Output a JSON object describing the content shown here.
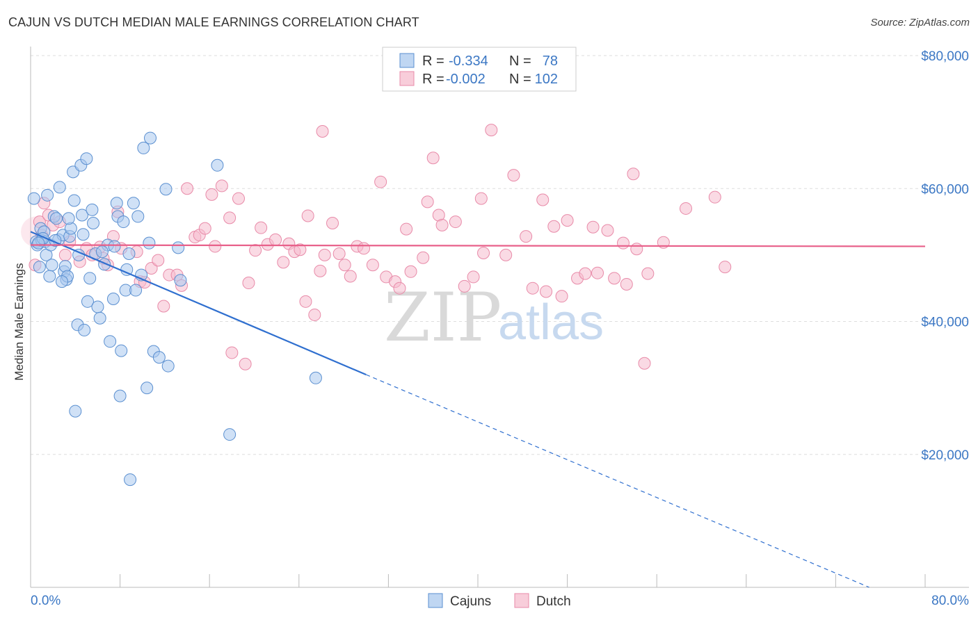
{
  "header": {
    "title": "CAJUN VS DUTCH MEDIAN MALE EARNINGS CORRELATION CHART",
    "source": "Source: ZipAtlas.com"
  },
  "watermark": {
    "zip": "ZIP",
    "atlas": "atlas"
  },
  "legend": {
    "rows": [
      {
        "r_label": "R =",
        "r_value": "-0.334",
        "n_label": "N =",
        "n_value": "78",
        "color": "#6a9fdc"
      },
      {
        "r_label": "R =",
        "r_value": "-0.002",
        "n_label": "N =",
        "n_value": "102",
        "color": "#f08cab"
      }
    ]
  },
  "bottom_legend": {
    "items": [
      "Cajuns",
      "Dutch"
    ]
  },
  "colors": {
    "cajun_fill": "#a9c8ee",
    "cajun_stroke": "#5a8fd0",
    "cajun_line": "#2f6fcf",
    "dutch_fill": "#f6bccd",
    "dutch_stroke": "#e88aa8",
    "dutch_line": "#e8608a",
    "grid": "#dddddd",
    "axis_text": "#3b77c4"
  },
  "chart_data": {
    "type": "scatter",
    "title": "CAJUN VS DUTCH MEDIAN MALE EARNINGS CORRELATION CHART",
    "xlabel": "",
    "ylabel": "Median Male Earnings",
    "xlim": [
      0,
      80
    ],
    "ylim": [
      0,
      80000
    ],
    "x_tick_labels": [
      "0.0%",
      "80.0%"
    ],
    "y_ticks": [
      20000,
      40000,
      60000,
      80000
    ],
    "y_tick_labels": [
      "$20,000",
      "$40,000",
      "$60,000",
      "$80,000"
    ],
    "series": [
      {
        "name": "Cajuns",
        "R": -0.334,
        "N": 78,
        "trend": {
          "x0": 0,
          "y0": 53500,
          "x1": 30,
          "y1": 32000,
          "dashed_to_x": 75,
          "dashed_to_y": 0
        },
        "points": [
          [
            0.3,
            58500
          ],
          [
            0.5,
            52000
          ],
          [
            0.6,
            51500
          ],
          [
            0.8,
            48200
          ],
          [
            0.9,
            54000
          ],
          [
            1.0,
            52200
          ],
          [
            1.2,
            53500
          ],
          [
            1.3,
            52000
          ],
          [
            1.4,
            50000
          ],
          [
            1.5,
            59000
          ],
          [
            1.7,
            46800
          ],
          [
            1.8,
            51500
          ],
          [
            1.9,
            48500
          ],
          [
            2.1,
            55800
          ],
          [
            2.3,
            55500
          ],
          [
            2.5,
            52300
          ],
          [
            2.6,
            60200
          ],
          [
            2.9,
            53000
          ],
          [
            3.0,
            47500
          ],
          [
            3.1,
            48300
          ],
          [
            3.2,
            46300
          ],
          [
            3.3,
            46800
          ],
          [
            3.5,
            52800
          ],
          [
            3.6,
            54000
          ],
          [
            3.8,
            62500
          ],
          [
            3.9,
            58200
          ],
          [
            4.2,
            39500
          ],
          [
            4.3,
            50000
          ],
          [
            4.5,
            63500
          ],
          [
            4.6,
            56000
          ],
          [
            4.8,
            38700
          ],
          [
            5.0,
            64500
          ],
          [
            5.1,
            43000
          ],
          [
            5.3,
            46500
          ],
          [
            5.5,
            56800
          ],
          [
            5.6,
            54800
          ],
          [
            5.8,
            50200
          ],
          [
            6.0,
            42200
          ],
          [
            6.2,
            40500
          ],
          [
            6.6,
            48600
          ],
          [
            6.9,
            51500
          ],
          [
            7.1,
            37000
          ],
          [
            7.4,
            43400
          ],
          [
            7.7,
            57800
          ],
          [
            7.8,
            55800
          ],
          [
            8.0,
            28800
          ],
          [
            8.1,
            35600
          ],
          [
            8.3,
            55000
          ],
          [
            8.5,
            44700
          ],
          [
            8.6,
            47800
          ],
          [
            8.8,
            50200
          ],
          [
            9.2,
            57800
          ],
          [
            9.4,
            44700
          ],
          [
            9.6,
            55800
          ],
          [
            10.1,
            66100
          ],
          [
            10.4,
            30000
          ],
          [
            10.6,
            51800
          ],
          [
            10.7,
            67600
          ],
          [
            11.0,
            35500
          ],
          [
            11.5,
            34600
          ],
          [
            12.1,
            59900
          ],
          [
            12.3,
            33300
          ],
          [
            13.2,
            51100
          ],
          [
            13.4,
            46200
          ],
          [
            16.7,
            63500
          ],
          [
            17.8,
            23000
          ],
          [
            8.9,
            16200
          ],
          [
            4.0,
            26500
          ],
          [
            25.5,
            31500
          ],
          [
            2.8,
            46000
          ],
          [
            1.1,
            52500
          ],
          [
            2.2,
            52200
          ],
          [
            3.4,
            55500
          ],
          [
            6.4,
            50500
          ],
          [
            9.9,
            47000
          ],
          [
            0.7,
            51800
          ],
          [
            4.7,
            53100
          ],
          [
            7.5,
            51300
          ]
        ]
      },
      {
        "name": "Dutch",
        "R": -0.002,
        "N": 102,
        "trend": {
          "x0": 0,
          "y0": 51500,
          "x1": 80,
          "y1": 51300
        },
        "points": [
          [
            0.4,
            48500
          ],
          [
            0.8,
            55000
          ],
          [
            1.2,
            57800
          ],
          [
            1.6,
            56000
          ],
          [
            2.0,
            54500
          ],
          [
            2.6,
            55000
          ],
          [
            3.1,
            50000
          ],
          [
            3.5,
            52000
          ],
          [
            4.4,
            49000
          ],
          [
            5.0,
            51000
          ],
          [
            5.5,
            50000
          ],
          [
            6.2,
            51200
          ],
          [
            6.9,
            48500
          ],
          [
            7.4,
            52800
          ],
          [
            7.8,
            56500
          ],
          [
            8.1,
            51000
          ],
          [
            9.5,
            50500
          ],
          [
            9.8,
            46000
          ],
          [
            10.2,
            45900
          ],
          [
            10.8,
            48000
          ],
          [
            11.4,
            49200
          ],
          [
            11.9,
            42300
          ],
          [
            12.4,
            47000
          ],
          [
            13.1,
            47000
          ],
          [
            13.5,
            45400
          ],
          [
            14.0,
            60000
          ],
          [
            14.7,
            52700
          ],
          [
            15.1,
            53000
          ],
          [
            15.6,
            54000
          ],
          [
            16.2,
            59100
          ],
          [
            16.5,
            51300
          ],
          [
            17.1,
            60400
          ],
          [
            17.8,
            55600
          ],
          [
            18.0,
            35300
          ],
          [
            18.6,
            58500
          ],
          [
            19.2,
            33600
          ],
          [
            19.5,
            45800
          ],
          [
            20.1,
            50700
          ],
          [
            20.6,
            54100
          ],
          [
            21.2,
            51600
          ],
          [
            21.9,
            52300
          ],
          [
            22.6,
            48900
          ],
          [
            23.1,
            51700
          ],
          [
            23.6,
            50500
          ],
          [
            24.1,
            50800
          ],
          [
            24.6,
            43000
          ],
          [
            24.8,
            55900
          ],
          [
            25.4,
            41000
          ],
          [
            25.9,
            47600
          ],
          [
            26.3,
            50000
          ],
          [
            27.0,
            54800
          ],
          [
            27.6,
            50200
          ],
          [
            28.1,
            48500
          ],
          [
            28.6,
            46800
          ],
          [
            29.2,
            51300
          ],
          [
            29.8,
            51000
          ],
          [
            30.6,
            48500
          ],
          [
            31.3,
            61000
          ],
          [
            31.8,
            46700
          ],
          [
            32.6,
            46000
          ],
          [
            33.0,
            45000
          ],
          [
            33.6,
            53900
          ],
          [
            34.0,
            47500
          ],
          [
            35.1,
            49600
          ],
          [
            36.0,
            64600
          ],
          [
            35.5,
            58000
          ],
          [
            36.5,
            56000
          ],
          [
            36.8,
            54500
          ],
          [
            38.0,
            55000
          ],
          [
            38.8,
            45300
          ],
          [
            39.6,
            46700
          ],
          [
            40.5,
            50300
          ],
          [
            40.3,
            58500
          ],
          [
            41.2,
            68800
          ],
          [
            42.5,
            50000
          ],
          [
            43.2,
            62000
          ],
          [
            44.3,
            52800
          ],
          [
            44.9,
            45000
          ],
          [
            45.8,
            58300
          ],
          [
            46.1,
            44500
          ],
          [
            46.8,
            54300
          ],
          [
            47.5,
            43800
          ],
          [
            48.0,
            55200
          ],
          [
            48.9,
            46500
          ],
          [
            49.6,
            47200
          ],
          [
            50.3,
            54200
          ],
          [
            50.7,
            47300
          ],
          [
            51.6,
            53700
          ],
          [
            52.2,
            46500
          ],
          [
            53.0,
            51800
          ],
          [
            53.3,
            45600
          ],
          [
            53.9,
            62200
          ],
          [
            54.2,
            50900
          ],
          [
            54.9,
            33700
          ],
          [
            55.2,
            47200
          ],
          [
            56.6,
            51900
          ],
          [
            58.6,
            57000
          ],
          [
            61.2,
            58700
          ],
          [
            62.1,
            48200
          ],
          [
            26.1,
            68600
          ],
          [
            1.0,
            53000
          ],
          [
            6.5,
            49500
          ]
        ]
      }
    ]
  }
}
